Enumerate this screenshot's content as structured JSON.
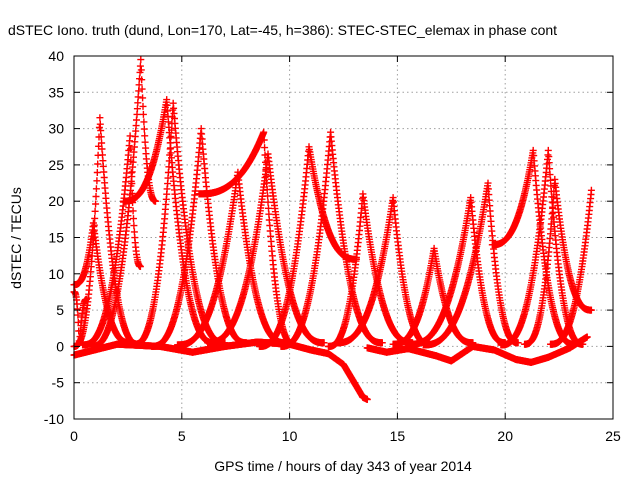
{
  "chart_data": {
    "type": "scatter",
    "title": "dSTEC Iono. truth (dund, Lon=170, Lat=-45, h=386): STEC-STEC_elemax in phase cont",
    "xlabel": "GPS time / hours of day 343 of year 2014",
    "ylabel": "dSTEC  / TECUs",
    "xlim": [
      0,
      25
    ],
    "ylim": [
      -10,
      40
    ],
    "xticks": [
      0,
      5,
      10,
      15,
      20,
      25
    ],
    "yticks": [
      -10,
      -5,
      0,
      5,
      10,
      15,
      20,
      25,
      30,
      35,
      40
    ],
    "grid": true,
    "marker": "plus",
    "color": "#ff0000",
    "passes": [
      {
        "start": 0.0,
        "peak": 0.25,
        "end": 0.6,
        "peak_value": 0.0,
        "start_value": 7.5,
        "end_value": 6.5
      },
      {
        "start": 0.0,
        "peak": 1.2,
        "end": 3.0,
        "peak_value": 31.5,
        "start_value": 0.0,
        "end_value": 0.3
      },
      {
        "start": 0.0,
        "peak": 0.9,
        "end": 2.6,
        "peak_value": 17.0,
        "start_value": 8.5,
        "end_value": 0.5
      },
      {
        "start": 0.4,
        "peak": 2.6,
        "end": 3.1,
        "peak_value": 29.0,
        "start_value": 0.2,
        "end_value": 11.0
      },
      {
        "start": 0.8,
        "peak": 3.1,
        "end": 3.8,
        "peak_value": 39.5,
        "start_value": 0.0,
        "end_value": 20.0
      },
      {
        "start": 2.3,
        "peak": 4.3,
        "end": 6.5,
        "peak_value": 34.0,
        "start_value": 20.0,
        "end_value": 0.5
      },
      {
        "start": 2.8,
        "peak": 4.6,
        "end": 7.0,
        "peak_value": 33.5,
        "start_value": 0.3,
        "end_value": 0.5
      },
      {
        "start": 3.6,
        "peak": 5.9,
        "end": 8.0,
        "peak_value": 30.0,
        "start_value": 0.0,
        "end_value": 0.5
      },
      {
        "start": 4.8,
        "peak": 7.6,
        "end": 9.8,
        "peak_value": 24.0,
        "start_value": 0.2,
        "end_value": 0.5
      },
      {
        "start": 5.8,
        "peak": 8.8,
        "end": 10.2,
        "peak_value": 29.5,
        "start_value": 21.0,
        "end_value": 0.3
      },
      {
        "start": 6.2,
        "peak": 9.0,
        "end": 11.6,
        "peak_value": 26.5,
        "start_value": 0.5,
        "end_value": 0.5
      },
      {
        "start": 8.6,
        "peak": 10.9,
        "end": 13.1,
        "peak_value": 27.5,
        "start_value": 0.0,
        "end_value": 12.0
      },
      {
        "start": 9.6,
        "peak": 11.9,
        "end": 14.3,
        "peak_value": 29.5,
        "start_value": 0.0,
        "end_value": 0.5
      },
      {
        "start": 11.8,
        "peak": 13.4,
        "end": 15.7,
        "peak_value": 21.0,
        "start_value": 0.0,
        "end_value": 0.5
      },
      {
        "start": 12.2,
        "peak": 14.8,
        "end": 16.5,
        "peak_value": 20.5,
        "start_value": 0.5,
        "end_value": 0.3
      },
      {
        "start": 14.8,
        "peak": 16.7,
        "end": 18.5,
        "peak_value": 13.5,
        "start_value": 0.3,
        "end_value": 0.5
      },
      {
        "start": 15.6,
        "peak": 18.4,
        "end": 20.0,
        "peak_value": 20.5,
        "start_value": 0.3,
        "end_value": 0.5
      },
      {
        "start": 16.2,
        "peak": 19.2,
        "end": 20.6,
        "peak_value": 22.5,
        "start_value": 0.2,
        "end_value": 0.5
      },
      {
        "start": 19.4,
        "peak": 21.3,
        "end": 23.2,
        "peak_value": 27.0,
        "start_value": 14.0,
        "end_value": 0.3
      },
      {
        "start": 19.8,
        "peak": 22.0,
        "end": 23.6,
        "peak_value": 27.0,
        "start_value": 0.2,
        "end_value": 0.3
      },
      {
        "start": 20.9,
        "peak": 22.3,
        "end": 24.0,
        "peak_value": 23.0,
        "start_value": 0.3,
        "end_value": 5.0
      },
      {
        "start": 22.1,
        "peak": 24.0,
        "end": 24.0,
        "peak_value": 21.5,
        "start_value": 0.3,
        "end_value": 21.5
      }
    ],
    "drifts": [
      {
        "x": [
          0.0,
          2.0,
          4.0,
          5.5,
          7.0,
          8.5,
          10.0,
          11.0,
          11.8,
          12.5,
          13.0,
          13.4,
          13.6
        ],
        "y": [
          -1.2,
          0.3,
          0.0,
          -0.8,
          0.0,
          0.6,
          0.3,
          -0.5,
          -1.0,
          -2.5,
          -5.0,
          -7.0,
          -7.3
        ]
      },
      {
        "x": [
          13.6,
          14.5,
          15.5,
          16.8,
          17.5,
          18.5,
          19.5,
          20.5,
          21.2,
          22.0,
          23.0,
          23.8
        ],
        "y": [
          -0.2,
          -0.8,
          -0.3,
          -1.3,
          -2.0,
          0.0,
          -0.5,
          -1.8,
          -2.2,
          -1.5,
          -0.2,
          1.3
        ]
      }
    ]
  }
}
